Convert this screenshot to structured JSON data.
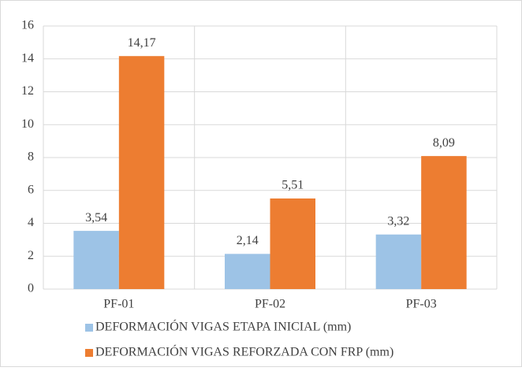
{
  "chart_data": {
    "type": "bar",
    "categories": [
      "PF-01",
      "PF-02",
      "PF-03"
    ],
    "series": [
      {
        "name": "DEFORMACIÓN VIGAS ETAPA INICIAL (mm)",
        "color": "#9dc3e6",
        "values": [
          3.54,
          2.14,
          3.32
        ],
        "value_labels": [
          "3,54",
          "2,14",
          "3,32"
        ]
      },
      {
        "name": "DEFORMACIÓN VIGAS REFORZADA CON FRP (mm)",
        "color": "#ed7d31",
        "values": [
          14.17,
          5.51,
          8.09
        ],
        "value_labels": [
          "14,17",
          "5,51",
          "8,09"
        ]
      }
    ],
    "ylim": [
      0,
      16
    ],
    "yticks": [
      0,
      2,
      4,
      6,
      8,
      10,
      12,
      14,
      16
    ],
    "grid": true,
    "legend": "bottom"
  }
}
